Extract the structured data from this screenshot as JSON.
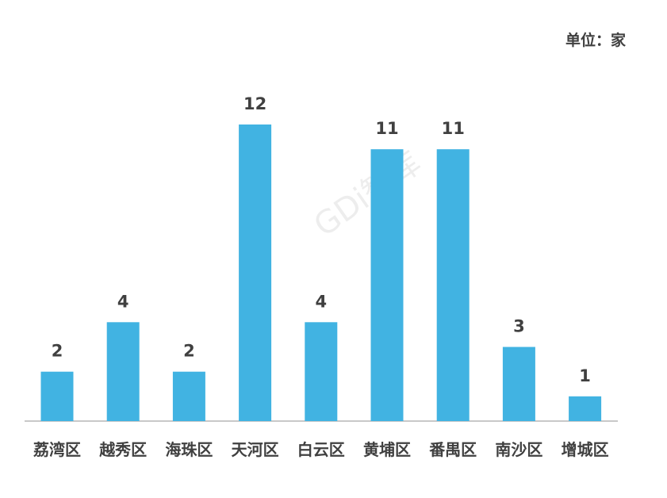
{
  "unit": "单位：家",
  "watermark": "GDi智库",
  "colors": {
    "bar": "#41b3e2",
    "axis": "#c8c8c8",
    "text": "#404040"
  },
  "chart_data": {
    "type": "bar",
    "categories": [
      "荔湾区",
      "越秀区",
      "海珠区",
      "天河区",
      "白云区",
      "黄埔区",
      "番禺区",
      "南沙区",
      "增城区"
    ],
    "values": [
      2,
      4,
      2,
      12,
      4,
      11,
      11,
      3,
      1
    ],
    "ylim": [
      0,
      12
    ],
    "data_labels": true,
    "grid": false,
    "legend": "none"
  }
}
